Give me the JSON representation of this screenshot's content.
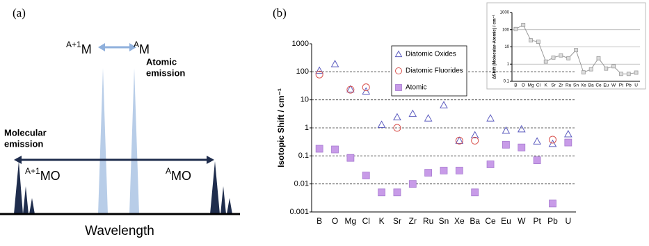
{
  "panel_a": {
    "label": "(a)",
    "atomic_a1": {
      "sup": "A+1",
      "base": "M"
    },
    "atomic_a": {
      "sup": "A",
      "base": "M"
    },
    "atomic_emission": [
      "Atomic",
      "emission"
    ],
    "molecular_emission": [
      "Molecular",
      "emission"
    ],
    "molecular_a1": {
      "sup": "A+1",
      "base": "MO"
    },
    "molecular_a": {
      "sup": "A",
      "base": "MO"
    },
    "x_label": "Wavelength"
  },
  "panel_b_label": "(b)",
  "chart_data": [
    {
      "type": "scatter",
      "y_label": "Isotopic Shift / cm⁻¹",
      "log_y": true,
      "grid": "dashed",
      "legend": "top-center",
      "categories": [
        "B",
        "O",
        "Mg",
        "Cl",
        "K",
        "Sr",
        "Zr",
        "Ru",
        "Sn",
        "Xe",
        "Ba",
        "Ce",
        "Eu",
        "W",
        "Pt",
        "Pb",
        "U"
      ],
      "ylim": [
        0.001,
        1000
      ],
      "yticks": [
        0.001,
        0.01,
        0.1,
        1,
        10,
        100,
        1000
      ],
      "series": [
        {
          "name": "Diatomic Oxides",
          "color": "#5b5bbf",
          "marker": "triangle",
          "values": [
            110,
            190,
            24,
            20,
            1.3,
            2.4,
            3.2,
            2.2,
            6.5,
            0.35,
            0.55,
            2.2,
            0.8,
            0.9,
            0.33,
            0.27,
            0.6
          ]
        },
        {
          "name": "Diatomic Fluorides",
          "color": "#d9534f",
          "marker": "circle",
          "values": [
            80,
            null,
            23,
            28,
            null,
            1.0,
            null,
            null,
            null,
            0.35,
            0.35,
            null,
            null,
            null,
            null,
            0.38,
            null
          ]
        },
        {
          "name": "Atomic",
          "color": "#c89be8",
          "marker": "square",
          "values": [
            0.18,
            0.17,
            0.085,
            0.02,
            0.005,
            0.005,
            0.01,
            0.025,
            0.03,
            0.03,
            0.005,
            0.05,
            0.25,
            0.2,
            0.07,
            0.002,
            0.3
          ]
        }
      ]
    },
    {
      "type": "line",
      "y_label": "ΔShift (Molecular-Atomic) / cm⁻¹",
      "log_y": true,
      "grid": "solid",
      "categories": [
        "B",
        "O",
        "Mg",
        "Cl",
        "K",
        "Sr",
        "Zr",
        "Ru",
        "Sn",
        "Xe",
        "Ba",
        "Ce",
        "Eu",
        "W",
        "Pt",
        "Pb",
        "U"
      ],
      "ylim": [
        0.1,
        1000
      ],
      "yticks": [
        0.1,
        1,
        10,
        100,
        1000
      ],
      "series": [
        {
          "color": "#999999",
          "marker": "square",
          "values": [
            110,
            190,
            24,
            20,
            1.4,
            2.4,
            3.2,
            2.2,
            6.5,
            0.33,
            0.5,
            2.2,
            0.55,
            0.75,
            0.27,
            0.27,
            0.32
          ]
        }
      ]
    }
  ]
}
